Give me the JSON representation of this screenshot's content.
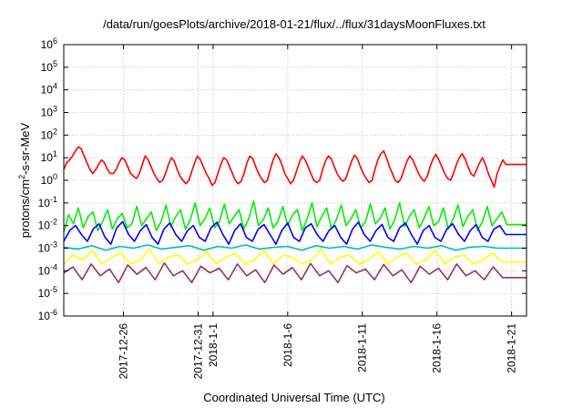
{
  "chart_data": {
    "type": "line",
    "title": "/data/run/goesPlots/archive/2018-01-21/flux/../flux/31daysMoonFluxes.txt",
    "xlabel": "Coordinated Universal Time (UTC)",
    "ylabel_parts": [
      "protons/cm",
      "2",
      "-s-sr-MeV"
    ],
    "yscale": "log",
    "ylim": [
      1e-06,
      1000000
    ],
    "y_ticks": [
      {
        "base": "10",
        "exp": "-6",
        "value": 1e-06
      },
      {
        "base": "10",
        "exp": "-5",
        "value": 1e-05
      },
      {
        "base": "10",
        "exp": "-4",
        "value": 0.0001
      },
      {
        "base": "10",
        "exp": "-3",
        "value": 0.001
      },
      {
        "base": "10",
        "exp": "-2",
        "value": 0.01
      },
      {
        "base": "10",
        "exp": "-1",
        "value": 0.1
      },
      {
        "base": "10",
        "exp": "0",
        "value": 1
      },
      {
        "base": "10",
        "exp": "1",
        "value": 10
      },
      {
        "base": "10",
        "exp": "2",
        "value": 100
      },
      {
        "base": "10",
        "exp": "3",
        "value": 1000
      },
      {
        "base": "10",
        "exp": "4",
        "value": 10000
      },
      {
        "base": "10",
        "exp": "5",
        "value": 100000
      },
      {
        "base": "10",
        "exp": "6",
        "value": 1000000
      }
    ],
    "xlim": [
      "2017-12-22",
      "2018-01-22"
    ],
    "x_ticks": [
      {
        "label": "2017-12-26",
        "date": "2017-12-26"
      },
      {
        "label": "2017-12-31",
        "date": "2017-12-31"
      },
      {
        "label": "2018-1-1",
        "date": "2018-01-01"
      },
      {
        "label": "2018-1-6",
        "date": "2018-01-06"
      },
      {
        "label": "2018-1-11",
        "date": "2018-01-11"
      },
      {
        "label": "2018-1-16",
        "date": "2018-01-16"
      },
      {
        "label": "2018-1-21",
        "date": "2018-01-21"
      }
    ],
    "grid": true,
    "data_start": "2017-12-22",
    "data_end": "2018-01-21",
    "tail_end": "2018-01-22",
    "series": [
      {
        "color": "#ff0000",
        "level": 3.0,
        "tail_value": 5,
        "samples": [
          3,
          6,
          8,
          12,
          20,
          30,
          25,
          12,
          6,
          3,
          2,
          3,
          5,
          8,
          6,
          3,
          2,
          2,
          3,
          6,
          10,
          8,
          4,
          2,
          1.5,
          1.2,
          2,
          5,
          12,
          8,
          4,
          2,
          1.2,
          0.8,
          1,
          2,
          5,
          10,
          7,
          3,
          1.5,
          1,
          0.7,
          1,
          2.5,
          6,
          12,
          8,
          4,
          2,
          1.2,
          0.6,
          0.8,
          2,
          5,
          10,
          8,
          4,
          2,
          1,
          0.7,
          0.9,
          2,
          6,
          12,
          9,
          4,
          2,
          1.2,
          0.8,
          1,
          3,
          8,
          15,
          10,
          5,
          2,
          1.2,
          0.7,
          1,
          2.5,
          6,
          12,
          8,
          4,
          2,
          1,
          0.8,
          1,
          3,
          7,
          12,
          9,
          4,
          2,
          1.2,
          0.9,
          1.2,
          3,
          7,
          13,
          9,
          4,
          2,
          1.2,
          0.8,
          1,
          3,
          8,
          15,
          20,
          10,
          4,
          2,
          1,
          0.8,
          1.2,
          3,
          7,
          12,
          8,
          4,
          2,
          1.2,
          0.9,
          1.5,
          4,
          9,
          14,
          8,
          4,
          2,
          1.2,
          1,
          2,
          5,
          10,
          15,
          9,
          4,
          2,
          1.5,
          3,
          6,
          10,
          5,
          2,
          1,
          0.5,
          2,
          4,
          8,
          5,
          5,
          5
        ]
      },
      {
        "color": "#00ee00",
        "level": 0.02,
        "tail_value": 0.011,
        "spiky": true,
        "samples": [
          0.005,
          0.03,
          0.012,
          0.06,
          0.008,
          0.025,
          0.04,
          0.006,
          0.015,
          0.05,
          0.007,
          0.02,
          0.035,
          0.008,
          0.012,
          0.07,
          0.01,
          0.02,
          0.04,
          0.006,
          0.015,
          0.08,
          0.009,
          0.025,
          0.05,
          0.007,
          0.018,
          0.1,
          0.01,
          0.02,
          0.06,
          0.008,
          0.015,
          0.09,
          0.012,
          0.025,
          0.05,
          0.007,
          0.02,
          0.12,
          0.01,
          0.018,
          0.06,
          0.008,
          0.015,
          0.07,
          0.01,
          0.03,
          0.05,
          0.006,
          0.02,
          0.1,
          0.009,
          0.025,
          0.06,
          0.007,
          0.018,
          0.08,
          0.01,
          0.02,
          0.05,
          0.008,
          0.015,
          0.09,
          0.012,
          0.02,
          0.06,
          0.007,
          0.018,
          0.1,
          0.009,
          0.025,
          0.05,
          0.008,
          0.02,
          0.07,
          0.01,
          0.015,
          0.06,
          0.007,
          0.02,
          0.08,
          0.009,
          0.025,
          0.05,
          0.006,
          0.015,
          0.07,
          0.01,
          0.02,
          0.04,
          0.011,
          0.011
        ]
      },
      {
        "color": "#0000ff",
        "level": 0.003,
        "tail_value": 0.004,
        "samples": [
          0.002,
          0.006,
          0.01,
          0.004,
          0.002,
          0.007,
          0.012,
          0.003,
          0.0015,
          0.008,
          0.015,
          0.004,
          0.002,
          0.006,
          0.011,
          0.003,
          0.0015,
          0.007,
          0.013,
          0.004,
          0.002,
          0.006,
          0.01,
          0.003,
          0.002,
          0.008,
          0.014,
          0.004,
          0.0015,
          0.006,
          0.012,
          0.003,
          0.002,
          0.007,
          0.011,
          0.004,
          0.0015,
          0.006,
          0.013,
          0.003,
          0.002,
          0.008,
          0.012,
          0.004,
          0.002,
          0.006,
          0.01,
          0.003,
          0.0015,
          0.007,
          0.014,
          0.004,
          0.002,
          0.006,
          0.011,
          0.003,
          0.002,
          0.008,
          0.013,
          0.004,
          0.0015,
          0.006,
          0.01,
          0.003,
          0.002,
          0.007,
          0.012,
          0.004,
          0.002,
          0.006,
          0.011,
          0.003,
          0.002,
          0.007,
          0.01,
          0.004,
          0.004
        ]
      },
      {
        "color": "#00bbbb",
        "level": 0.0012,
        "tail_value": 0.001,
        "samples": [
          0.0011,
          0.0009,
          0.0013,
          0.0008,
          0.0012,
          0.001,
          0.0014,
          0.0009,
          0.0011,
          0.0013,
          0.0008,
          0.0012,
          0.001,
          0.0014,
          0.0009,
          0.0011,
          0.0012,
          0.0008,
          0.0013,
          0.001,
          0.0012,
          0.0009,
          0.0014,
          0.0011,
          0.0009,
          0.0012,
          0.001,
          0.0013,
          0.0008,
          0.0011,
          0.0012,
          0.001,
          0.001
        ]
      },
      {
        "color": "#ffff00",
        "level": 0.0003,
        "tail_value": 0.00025,
        "samples": [
          0.0002,
          0.0005,
          0.0003,
          0.0008,
          0.0002,
          0.0004,
          0.0006,
          0.0002,
          0.0003,
          0.0009,
          0.0002,
          0.0004,
          0.0005,
          0.0002,
          0.0003,
          0.0007,
          0.0002,
          0.0004,
          0.0006,
          0.0002,
          0.0003,
          0.0008,
          0.0002,
          0.0005,
          0.0004,
          0.0002,
          0.0003,
          0.0009,
          0.0002,
          0.0004,
          0.0005,
          0.0002,
          0.0003,
          0.0007,
          0.0002,
          0.0004,
          0.0006,
          0.0002,
          0.0003,
          0.0008,
          0.0002,
          0.0004,
          0.0005,
          0.0002,
          0.0003,
          0.0006,
          0.00025,
          0.00025
        ]
      },
      {
        "color": "#993366",
        "level": 0.0001,
        "tail_value": 5e-05,
        "samples": [
          8e-05,
          0.00015,
          4e-05,
          0.0002,
          6e-05,
          0.00012,
          3e-05,
          0.00018,
          7e-05,
          0.00014,
          4e-05,
          0.00022,
          6e-05,
          0.0001,
          3e-05,
          0.00016,
          8e-05,
          0.00013,
          4e-05,
          0.0002,
          6e-05,
          0.00011,
          3e-05,
          0.00018,
          7e-05,
          0.00014,
          4e-05,
          0.00021,
          6e-05,
          0.0001,
          3e-05,
          0.00017,
          8e-05,
          0.00012,
          4e-05,
          0.00019,
          6e-05,
          0.00011,
          3e-05,
          0.00016,
          7e-05,
          0.00013,
          4e-05,
          0.0002,
          6e-05,
          0.0001,
          4e-05,
          0.00015,
          5e-05,
          5e-05
        ]
      }
    ]
  }
}
